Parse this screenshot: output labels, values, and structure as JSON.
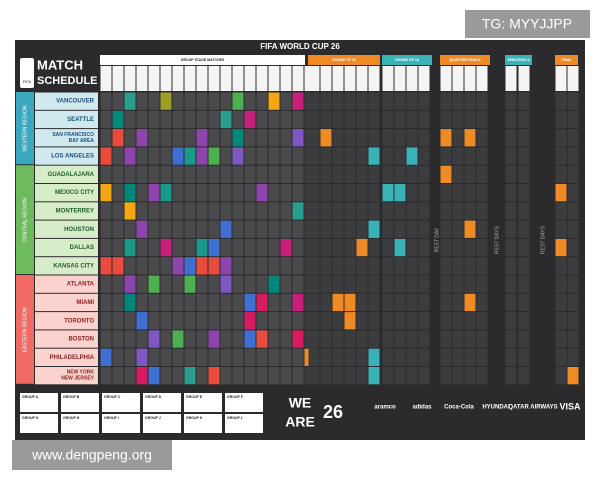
{
  "watermark_top": "TG: MYYJJPP",
  "watermark_bottom": "www.dengpeng.org",
  "header": {
    "event": "FIFA WORLD CUP 26",
    "title_line1": "MATCH",
    "title_line2": "SCHEDULE",
    "badge": "FIFA"
  },
  "stages": [
    {
      "label": "GROUP STAGE MATCHES"
    },
    {
      "label": "ROUND OF 32"
    },
    {
      "label": "ROUND OF 16"
    },
    {
      "label": "QUARTER-FINALS"
    },
    {
      "label": "SEMI-FINALS"
    },
    {
      "label": "FINAL"
    }
  ],
  "rest_days": [
    "REST DAY",
    "REST DAYS",
    "REST DAYS"
  ],
  "regions": [
    {
      "name": "WESTERN REGION",
      "cities": [
        "VANCOUVER",
        "SEATTLE",
        "SAN FRANCISCO BAY AREA",
        "LOS ANGELES"
      ]
    },
    {
      "name": "CENTRAL REGION",
      "cities": [
        "GUADALAJARA",
        "MEXICO CITY",
        "MONTERREY",
        "HOUSTON",
        "DALLAS",
        "KANSAS CITY"
      ]
    },
    {
      "name": "EASTERN REGION",
      "cities": [
        "ATLANTA",
        "MIAMI",
        "TORONTO",
        "BOSTON",
        "PHILADELPHIA",
        "NEW YORK NEW JERSEY"
      ]
    }
  ],
  "groups": [
    "GROUP A",
    "GROUP B",
    "GROUP C",
    "GROUP D",
    "GROUP E",
    "GROUP F",
    "GROUP G",
    "GROUP H",
    "GROUP I",
    "GROUP J",
    "GROUP K",
    "GROUP L"
  ],
  "logo": {
    "line1": "WE",
    "line2": "ARE",
    "mark": "26"
  },
  "sponsors": [
    "aramco",
    "adidas",
    "Coca-Cola",
    "HYUNDAI",
    "QATAR AIRWAYS",
    "VISA"
  ]
}
